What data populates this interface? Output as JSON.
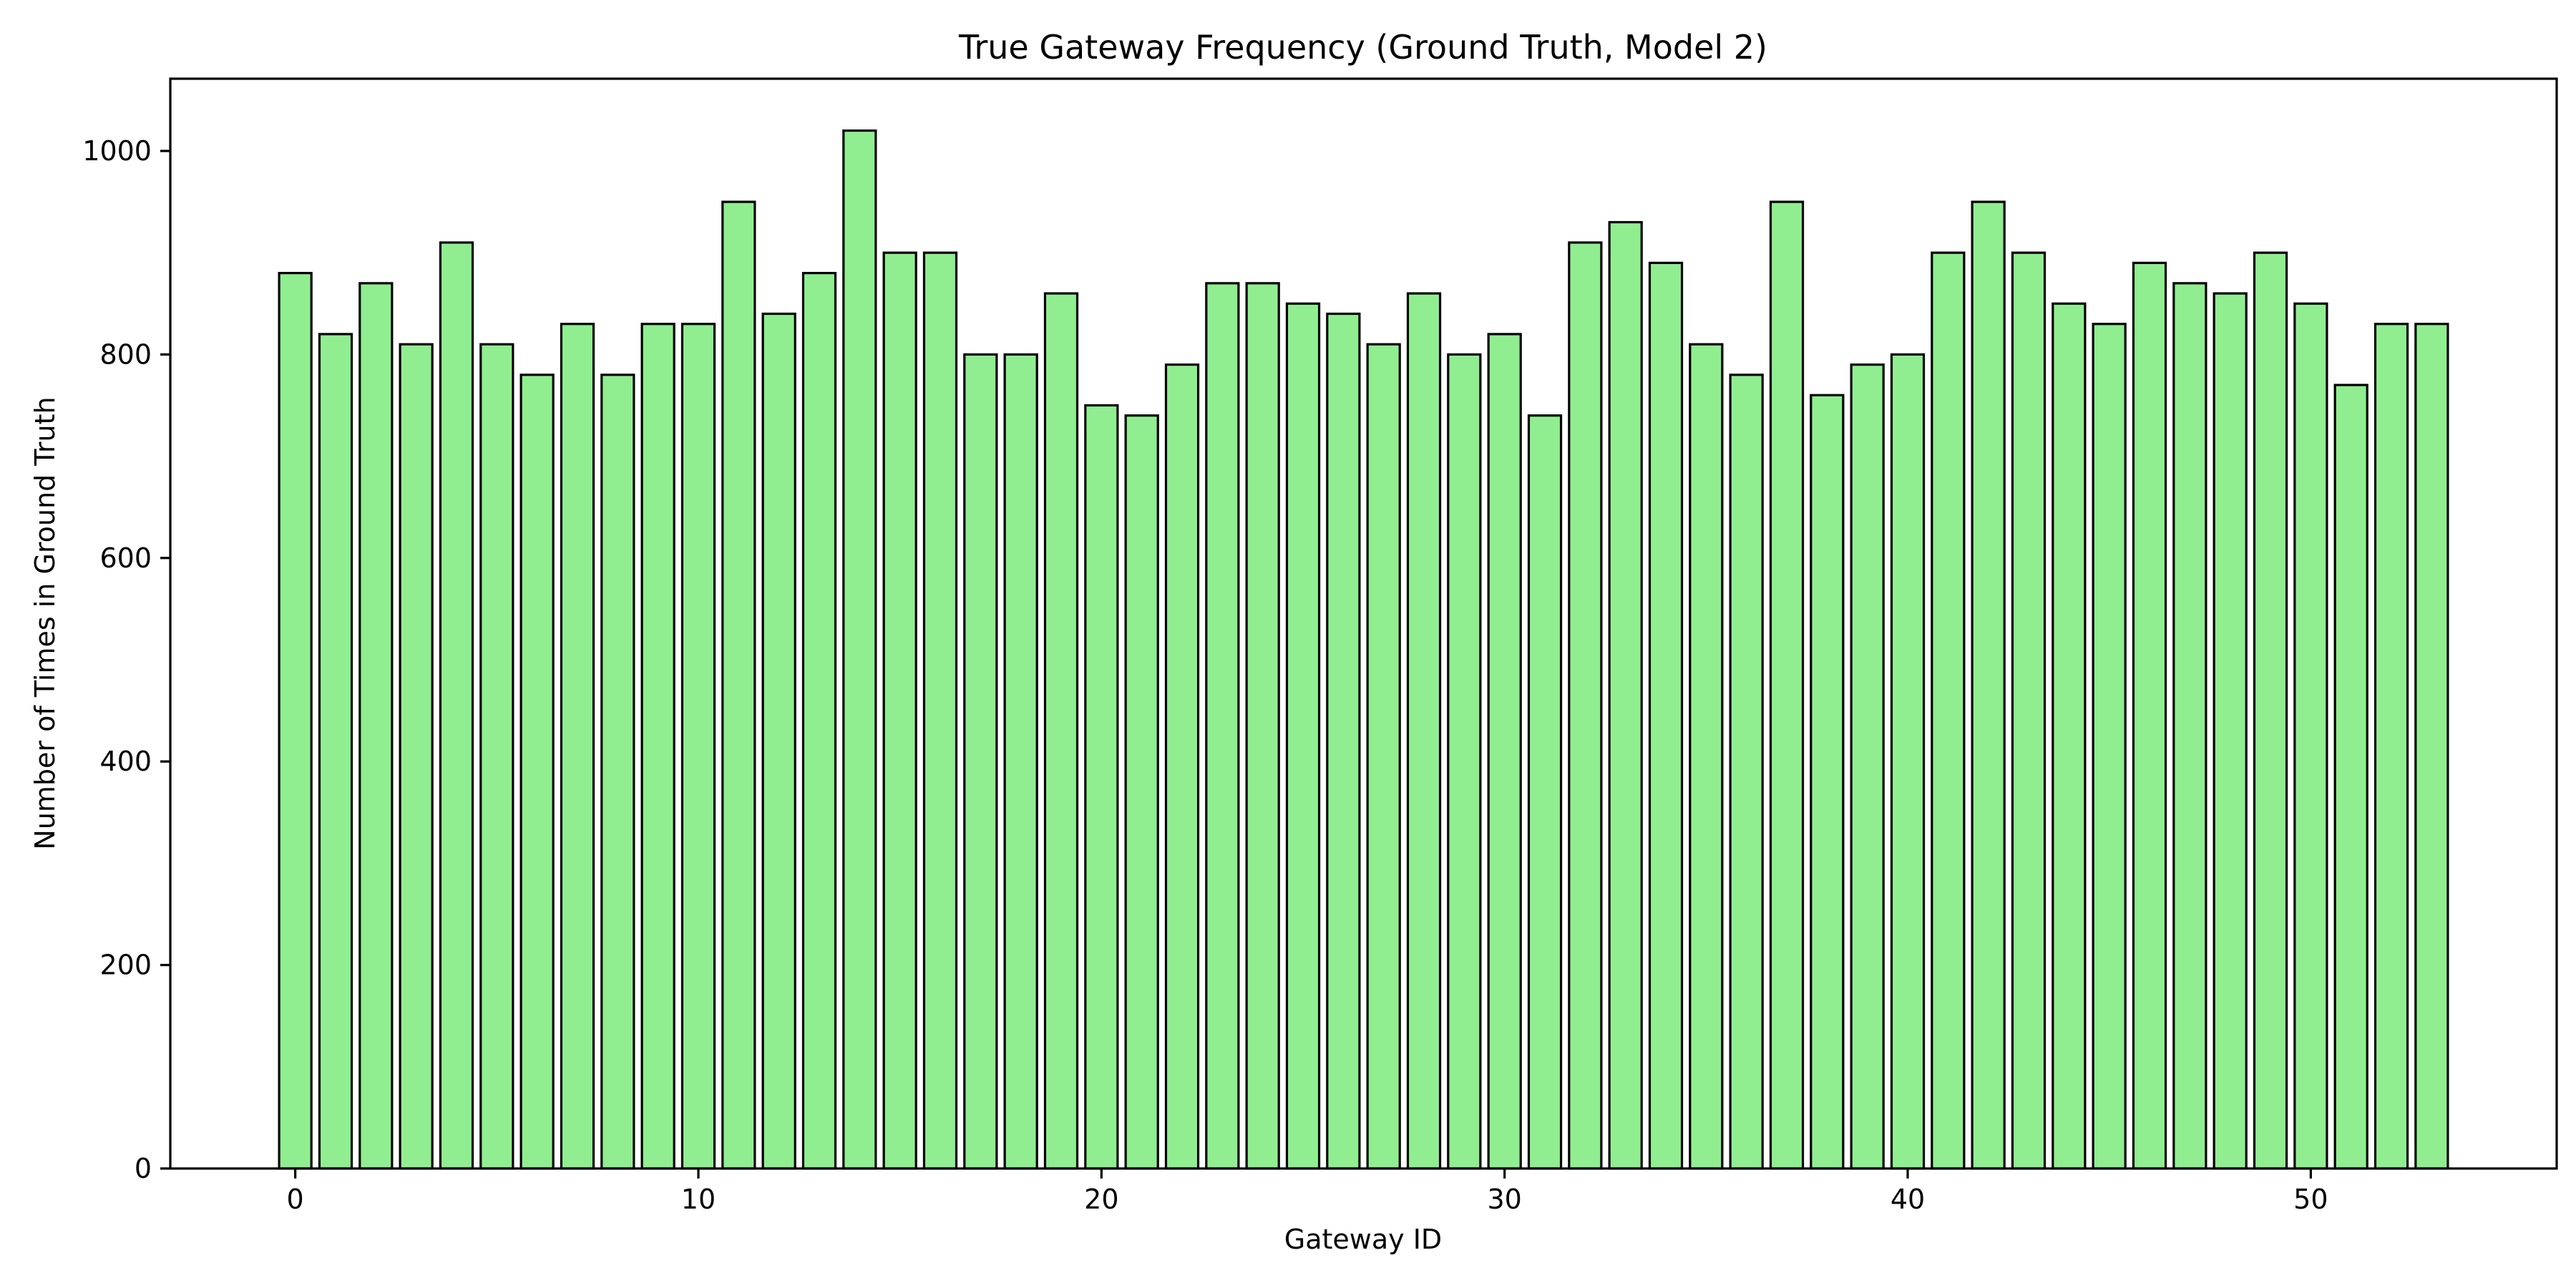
{
  "chart_data": {
    "type": "bar",
    "title": "True Gateway Frequency (Ground Truth, Model 2)",
    "xlabel": "Gateway ID",
    "ylabel": "Number of Times in Ground Truth",
    "categories": [
      0,
      1,
      2,
      3,
      4,
      5,
      6,
      7,
      8,
      9,
      10,
      11,
      12,
      13,
      14,
      15,
      16,
      17,
      18,
      19,
      20,
      21,
      22,
      23,
      24,
      25,
      26,
      27,
      28,
      29,
      30,
      31,
      32,
      33,
      34,
      35,
      36,
      37,
      38,
      39,
      40,
      41,
      42,
      43,
      44,
      45,
      46,
      47,
      48,
      49,
      50,
      51,
      52,
      53
    ],
    "values": [
      880,
      820,
      870,
      810,
      910,
      810,
      780,
      830,
      780,
      830,
      830,
      950,
      840,
      880,
      1020,
      900,
      900,
      800,
      800,
      860,
      750,
      740,
      790,
      870,
      870,
      850,
      840,
      810,
      860,
      800,
      820,
      740,
      910,
      930,
      890,
      810,
      780,
      950,
      760,
      790,
      800,
      900,
      950,
      900,
      850,
      830,
      890,
      870,
      860,
      900,
      850,
      770,
      830,
      830
    ],
    "xlim": [
      -3.1,
      56.1
    ],
    "ylim": [
      0,
      1071
    ],
    "xticks": [
      0,
      10,
      20,
      30,
      40,
      50
    ],
    "yticks": [
      0,
      200,
      400,
      600,
      800,
      1000
    ],
    "bar_color": "#90ee90",
    "edge_color": "#000000",
    "grid": false,
    "legend": "none"
  }
}
